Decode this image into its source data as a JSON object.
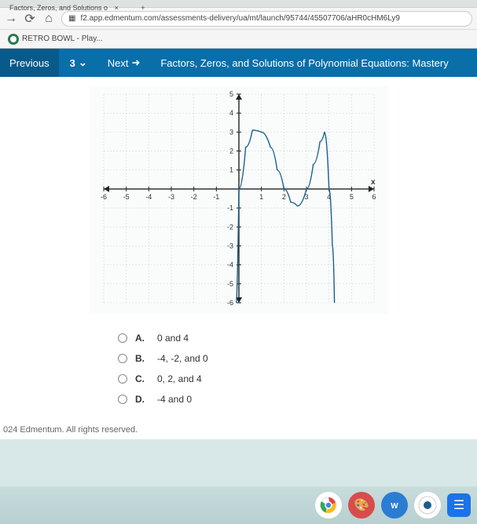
{
  "browser": {
    "tab_title": "Factors, Zeros, and Solutions o",
    "url": "f2.app.edmentum.com/assessments-delivery/ua/mt/launch/95744/45507706/aHR0cHM6Ly9",
    "bookmark": "RETRO BOWL - Play..."
  },
  "appbar": {
    "previous": "Previous",
    "question_number": "3",
    "next": "Next",
    "title": "Factors, Zeros, and Solutions of Polynomial Equations: Mastery"
  },
  "graph": {
    "xmin": -6,
    "xmax": 6,
    "ymin": -6,
    "ymax": 5,
    "xtick_step": 1,
    "ytick_step": 1,
    "grid_color": "#d0d8d8",
    "axis_color": "#222222",
    "curve_color": "#1a5f8f",
    "curve_width": 1.4,
    "background": "#fafcfc",
    "x_label": "x",
    "curve_points": [
      [
        -0.15,
        -6.5
      ],
      [
        0,
        0
      ],
      [
        0.3,
        2.2
      ],
      [
        0.6,
        3.1
      ],
      [
        1,
        3.0
      ],
      [
        1.4,
        2.2
      ],
      [
        1.7,
        1.0
      ],
      [
        2,
        0
      ],
      [
        2.3,
        -0.7
      ],
      [
        2.6,
        -0.9
      ],
      [
        3,
        0
      ],
      [
        3.3,
        1.3
      ],
      [
        3.6,
        2.5
      ],
      [
        3.8,
        3.0
      ],
      [
        4,
        0
      ],
      [
        4.15,
        -3
      ],
      [
        4.25,
        -6.5
      ]
    ]
  },
  "answers": {
    "options": [
      {
        "letter": "A.",
        "text": "0 and 4"
      },
      {
        "letter": "B.",
        "text": "-4, -2, and 0"
      },
      {
        "letter": "C.",
        "text": "0, 2, and 4"
      },
      {
        "letter": "D.",
        "text": "-4 and 0"
      }
    ]
  },
  "footer": "024 Edmentum. All rights reserved.",
  "colors": {
    "appbar_bg": "#0a6ea8",
    "content_bg": "#ffffff",
    "body_bg": "#d8e8e8"
  }
}
